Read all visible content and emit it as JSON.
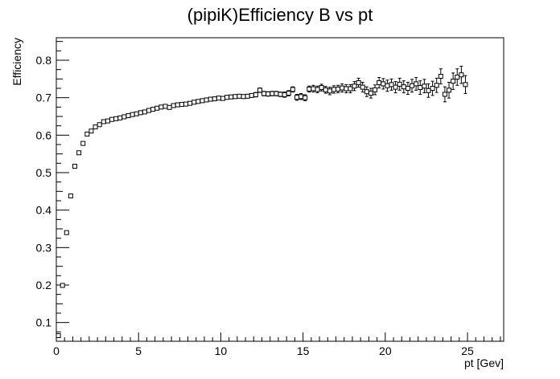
{
  "chart_data": {
    "type": "scatter",
    "title": "(pipiK)Efficiency B vs pt",
    "xlabel": "pt [Gev]",
    "ylabel": "Efficiency",
    "xlim": [
      0,
      27.2
    ],
    "ylim": [
      0.05,
      0.86
    ],
    "xticks": [
      0,
      5,
      10,
      15,
      20,
      25
    ],
    "yticks": [
      0.1,
      0.2,
      0.3,
      0.4,
      0.5,
      0.6,
      0.7,
      0.8
    ],
    "xtick_labels": [
      "0",
      "5",
      "10",
      "15",
      "20",
      "25"
    ],
    "ytick_labels": [
      "0.1",
      "0.2",
      "0.3",
      "0.4",
      "0.5",
      "0.6",
      "0.7",
      "0.8"
    ],
    "grid": false,
    "marker": "open-square-with-error-bars",
    "series": [
      {
        "x": [
          0.125,
          0.375,
          0.625,
          0.875,
          1.125,
          1.375,
          1.625,
          1.875,
          2.125,
          2.375,
          2.625,
          2.875,
          3.125,
          3.375,
          3.625,
          3.875,
          4.125,
          4.375,
          4.625,
          4.875,
          5.125,
          5.375,
          5.625,
          5.875,
          6.125,
          6.375,
          6.625,
          6.875,
          7.125,
          7.375,
          7.625,
          7.875,
          8.125,
          8.375,
          8.625,
          8.875,
          9.125,
          9.375,
          9.625,
          9.875,
          10.125,
          10.375,
          10.625,
          10.875,
          11.125,
          11.375,
          11.625,
          11.875,
          12.125,
          12.375,
          12.625,
          12.875,
          13.125,
          13.375,
          13.625,
          13.875,
          14.125,
          14.375,
          14.625,
          14.875,
          15.125,
          15.375,
          15.625,
          15.875,
          16.125,
          16.375,
          16.625,
          16.875,
          17.125,
          17.375,
          17.625,
          17.875,
          18.125,
          18.375,
          18.625,
          18.875,
          19.125,
          19.375,
          19.625,
          19.875,
          20.125,
          20.375,
          20.625,
          20.875,
          21.125,
          21.375,
          21.625,
          21.875,
          22.125,
          22.375,
          22.625,
          22.875,
          23.125,
          23.375,
          23.625,
          23.875,
          24.125,
          24.375,
          24.625,
          24.875
        ],
        "y": [
          0.065,
          0.199,
          0.34,
          0.438,
          0.517,
          0.553,
          0.578,
          0.603,
          0.611,
          0.622,
          0.628,
          0.636,
          0.638,
          0.642,
          0.644,
          0.646,
          0.649,
          0.652,
          0.655,
          0.657,
          0.66,
          0.662,
          0.666,
          0.669,
          0.672,
          0.675,
          0.677,
          0.674,
          0.679,
          0.681,
          0.682,
          0.683,
          0.685,
          0.688,
          0.69,
          0.692,
          0.694,
          0.696,
          0.697,
          0.699,
          0.698,
          0.701,
          0.702,
          0.703,
          0.704,
          0.703,
          0.704,
          0.706,
          0.708,
          0.72,
          0.711,
          0.71,
          0.711,
          0.711,
          0.709,
          0.708,
          0.712,
          0.722,
          0.701,
          0.703,
          0.7,
          0.723,
          0.724,
          0.722,
          0.727,
          0.721,
          0.718,
          0.722,
          0.723,
          0.726,
          0.724,
          0.724,
          0.731,
          0.74,
          0.728,
          0.716,
          0.712,
          0.721,
          0.74,
          0.737,
          0.732,
          0.735,
          0.728,
          0.736,
          0.729,
          0.725,
          0.732,
          0.737,
          0.727,
          0.731,
          0.719,
          0.725,
          0.733,
          0.757,
          0.709,
          0.72,
          0.744,
          0.755,
          0.761,
          0.735
        ],
        "yerr": [
          0.003,
          0.004,
          0.004,
          0.004,
          0.004,
          0.004,
          0.004,
          0.004,
          0.004,
          0.004,
          0.004,
          0.004,
          0.004,
          0.004,
          0.004,
          0.004,
          0.004,
          0.004,
          0.004,
          0.004,
          0.004,
          0.004,
          0.004,
          0.004,
          0.004,
          0.004,
          0.004,
          0.004,
          0.004,
          0.004,
          0.004,
          0.004,
          0.004,
          0.004,
          0.004,
          0.004,
          0.004,
          0.004,
          0.004,
          0.004,
          0.004,
          0.005,
          0.005,
          0.005,
          0.005,
          0.005,
          0.005,
          0.005,
          0.006,
          0.006,
          0.006,
          0.006,
          0.006,
          0.006,
          0.006,
          0.007,
          0.007,
          0.007,
          0.008,
          0.008,
          0.008,
          0.008,
          0.009,
          0.009,
          0.009,
          0.009,
          0.01,
          0.01,
          0.01,
          0.011,
          0.011,
          0.011,
          0.012,
          0.012,
          0.013,
          0.013,
          0.013,
          0.013,
          0.014,
          0.014,
          0.015,
          0.015,
          0.015,
          0.016,
          0.016,
          0.016,
          0.017,
          0.017,
          0.018,
          0.018,
          0.018,
          0.019,
          0.019,
          0.02,
          0.02,
          0.021,
          0.022,
          0.022,
          0.023,
          0.024
        ]
      }
    ]
  }
}
